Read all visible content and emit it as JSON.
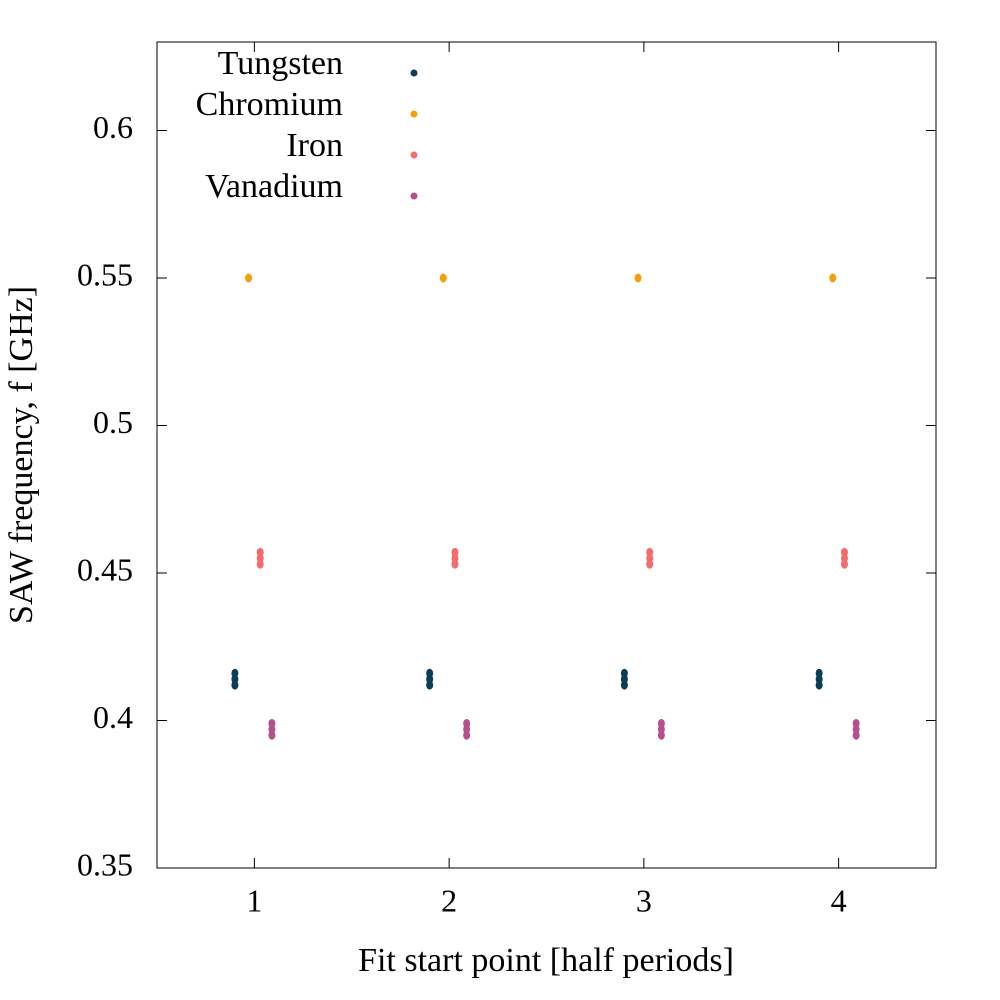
{
  "chart_data": {
    "type": "scatter",
    "xlabel": "Fit start point [half periods]",
    "ylabel": "SAW frequency, f [GHz]",
    "xlim": [
      0.5,
      4.5
    ],
    "xticks": [
      1,
      2,
      3,
      4
    ],
    "ylim": [
      0.35,
      0.63
    ],
    "yticks": [
      0.35,
      0.4,
      0.45,
      0.5,
      0.55,
      0.6
    ],
    "legend": "upper left",
    "series": [
      {
        "name": "Tungsten",
        "color": "#0b3d56",
        "x": [
          0.9,
          0.9,
          0.9,
          1.9,
          1.9,
          1.9,
          2.9,
          2.9,
          2.9,
          3.9,
          3.9,
          3.9
        ],
        "values": [
          0.412,
          0.414,
          0.416,
          0.412,
          0.414,
          0.416,
          0.412,
          0.414,
          0.416,
          0.412,
          0.414,
          0.416
        ]
      },
      {
        "name": "Chromium",
        "color": "#f2a10a",
        "x": [
          0.97,
          1.97,
          2.97,
          3.97
        ],
        "values": [
          0.55,
          0.55,
          0.55,
          0.55
        ]
      },
      {
        "name": "Iron",
        "color": "#f36b6b",
        "x": [
          1.03,
          1.03,
          1.03,
          2.03,
          2.03,
          2.03,
          3.03,
          3.03,
          3.03,
          4.03,
          4.03,
          4.03
        ],
        "values": [
          0.453,
          0.455,
          0.457,
          0.453,
          0.455,
          0.457,
          0.453,
          0.455,
          0.457,
          0.453,
          0.455,
          0.457
        ]
      },
      {
        "name": "Vanadium",
        "color": "#b5508f",
        "x": [
          1.09,
          1.09,
          1.09,
          2.09,
          2.09,
          2.09,
          3.09,
          3.09,
          3.09,
          4.09,
          4.09,
          4.09
        ],
        "values": [
          0.395,
          0.397,
          0.399,
          0.395,
          0.397,
          0.399,
          0.395,
          0.397,
          0.399,
          0.395,
          0.397,
          0.399
        ]
      }
    ]
  }
}
